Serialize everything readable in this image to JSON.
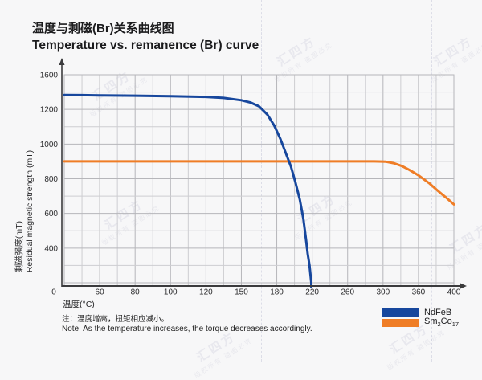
{
  "title": {
    "zh": "温度与剩磁(Br)关系曲线图",
    "en": "Temperature vs. remanence (Br) curve"
  },
  "watermark": {
    "brand": "汇四方",
    "notice": "版权所有 盗图必究"
  },
  "chart_data": {
    "type": "line",
    "title": "Temperature vs. remanence (Br) curve",
    "xlabel": "温度(°C)",
    "ylabel_zh": "剩磁强度(mT)",
    "ylabel_en": "Residual magnetic strength (mT)",
    "x_ticks": [
      0,
      60,
      80,
      100,
      120,
      150,
      180,
      220,
      260,
      300,
      360,
      400
    ],
    "y_ticks": [
      0,
      400,
      600,
      800,
      1000,
      1200,
      1600
    ],
    "grid": true,
    "legend_position": "bottom-right",
    "axis_color": "#3b3b3d",
    "grid_major_color": "#b6b6ba",
    "grid_minor_color": "#cdcdd1",
    "series": [
      {
        "name": "NdFeB",
        "color": "#17479d",
        "ends_on_axis": true,
        "points": [
          [
            0,
            1366
          ],
          [
            30,
            1365
          ],
          [
            60,
            1362
          ],
          [
            80,
            1358
          ],
          [
            100,
            1353
          ],
          [
            120,
            1344
          ],
          [
            135,
            1332
          ],
          [
            150,
            1305
          ],
          [
            158,
            1278
          ],
          [
            165,
            1235
          ],
          [
            172,
            1170
          ],
          [
            178,
            1105
          ],
          [
            184,
            1030
          ],
          [
            190,
            950
          ],
          [
            196,
            870
          ],
          [
            201,
            780
          ],
          [
            206,
            680
          ],
          [
            210,
            570
          ],
          [
            213,
            450
          ],
          [
            215,
            330
          ],
          [
            217,
            200
          ],
          [
            218,
            100
          ],
          [
            219,
            0
          ]
        ]
      },
      {
        "name": "Sm2Co17",
        "color": "#ef7d26",
        "ends_on_axis": false,
        "points": [
          [
            0,
            900
          ],
          [
            60,
            900
          ],
          [
            120,
            900
          ],
          [
            180,
            900
          ],
          [
            240,
            900
          ],
          [
            290,
            900
          ],
          [
            305,
            898
          ],
          [
            318,
            890
          ],
          [
            332,
            873
          ],
          [
            345,
            850
          ],
          [
            360,
            820
          ],
          [
            372,
            775
          ],
          [
            382,
            730
          ],
          [
            391,
            692
          ],
          [
            400,
            652
          ]
        ]
      }
    ]
  },
  "legend": {
    "items": [
      {
        "label": "NdFeB"
      },
      {
        "parts": [
          "Sm",
          "2",
          "Co",
          "17"
        ]
      }
    ]
  },
  "note": {
    "zh": "注：温度增高，扭矩相应减小。",
    "en": "Note: As the temperature increases, the torque decreases accordingly."
  }
}
